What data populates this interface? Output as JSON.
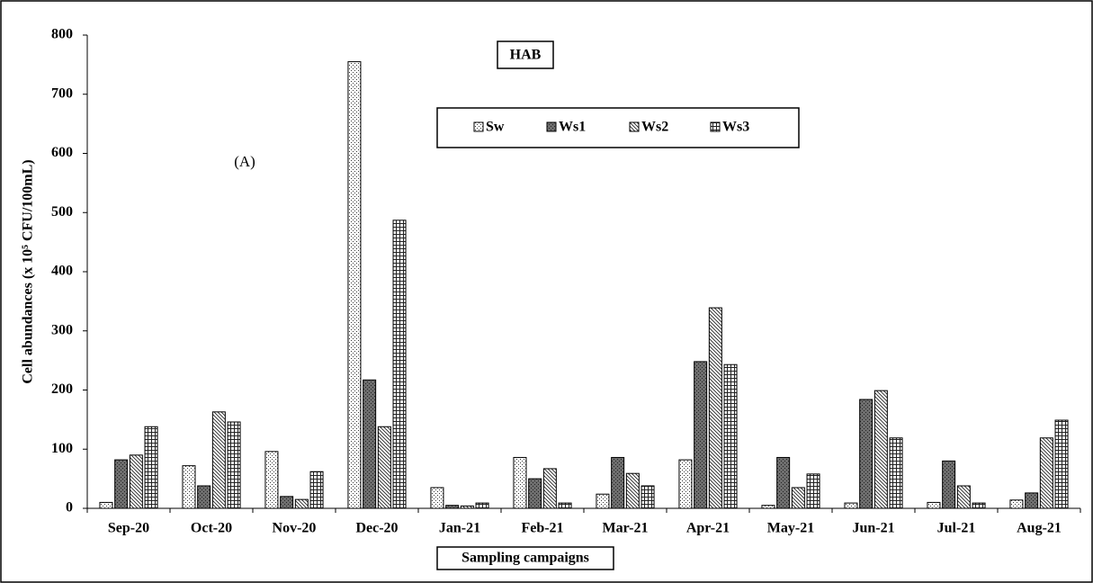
{
  "chart_data": {
    "type": "bar",
    "title": "HAB",
    "annotation": "(A)",
    "x_label": "Sampling campaigns",
    "y_label": "Cell abundances (x 10⁵ CFU/100mL)",
    "categories": [
      "Sep-20",
      "Oct-20",
      "Nov-20",
      "Dec-20",
      "Jan-21",
      "Feb-21",
      "Mar-21",
      "Apr-21",
      "May-21",
      "Jun-21",
      "Jul-21",
      "Aug-21"
    ],
    "series": [
      {
        "name": "Sw",
        "color": "#ffffff",
        "pattern": "dots",
        "values": [
          10,
          72,
          96,
          755,
          35,
          86,
          24,
          82,
          5,
          9,
          10,
          14
        ]
      },
      {
        "name": "Ws1",
        "color": "#6e6e6e",
        "pattern": "dots",
        "values": [
          82,
          38,
          20,
          217,
          5,
          50,
          86,
          248,
          86,
          184,
          80,
          26
        ]
      },
      {
        "name": "Ws2",
        "color": "#ffffff",
        "pattern": "diagonal",
        "values": [
          90,
          163,
          15,
          138,
          4,
          67,
          59,
          339,
          35,
          199,
          38,
          119
        ]
      },
      {
        "name": "Ws3",
        "color": "#ffffff",
        "pattern": "grid",
        "values": [
          138,
          146,
          62,
          487,
          9,
          9,
          38,
          243,
          58,
          119,
          9,
          149
        ]
      }
    ],
    "ylim": [
      0,
      800
    ],
    "yticks": [
      0,
      100,
      200,
      300,
      400,
      500,
      600,
      700,
      800
    ],
    "grid": false
  }
}
